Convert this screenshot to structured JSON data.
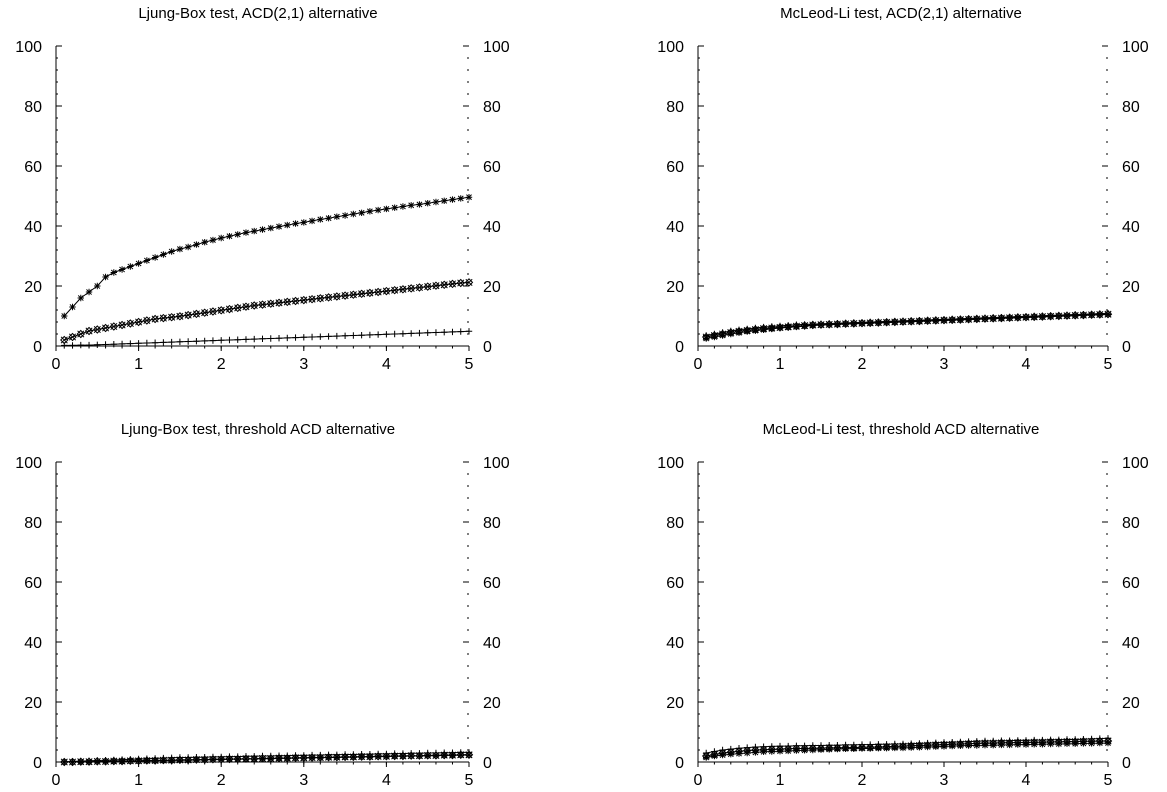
{
  "chart_data": [
    {
      "type": "line",
      "title": "Ljung-Box test, ACD(2,1) alternative",
      "xlim": [
        0,
        5
      ],
      "ylim": [
        0,
        100
      ],
      "xticks": [
        "0",
        "1",
        "2",
        "3",
        "4",
        "5"
      ],
      "yticks": [
        "0",
        "20",
        "40",
        "60",
        "80",
        "100"
      ],
      "grid": false,
      "x": [
        0.1,
        0.2,
        0.3,
        0.4,
        0.5,
        0.6,
        0.7,
        0.8,
        0.9,
        1.0,
        1.1,
        1.2,
        1.3,
        1.4,
        1.5,
        1.6,
        1.7,
        1.8,
        1.9,
        2.0,
        2.1,
        2.2,
        2.3,
        2.4,
        2.5,
        2.6,
        2.7,
        2.8,
        2.9,
        3.0,
        3.1,
        3.2,
        3.3,
        3.4,
        3.5,
        3.6,
        3.7,
        3.8,
        3.9,
        4.0,
        4.1,
        4.2,
        4.3,
        4.4,
        4.5,
        4.6,
        4.7,
        4.8,
        4.9,
        5.0
      ],
      "series": [
        {
          "marker": "asterisk",
          "values": [
            10,
            13,
            16,
            18,
            20,
            23,
            24.5,
            25.5,
            26.5,
            27.5,
            28.5,
            29.5,
            30.5,
            31.5,
            32.3,
            33,
            33.8,
            34.6,
            35.3,
            36,
            36.6,
            37.2,
            37.8,
            38.3,
            38.8,
            39.3,
            39.8,
            40.3,
            40.8,
            41.2,
            41.7,
            42.2,
            42.6,
            43.1,
            43.5,
            44,
            44.4,
            44.9,
            45.3,
            45.7,
            46.1,
            46.5,
            46.9,
            47.2,
            47.6,
            48,
            48.4,
            48.8,
            49.2,
            49.6
          ]
        },
        {
          "marker": "x-diamond",
          "values": [
            2,
            3,
            4,
            5,
            5.5,
            6,
            6.5,
            7,
            7.5,
            8,
            8.5,
            9,
            9.3,
            9.6,
            9.9,
            10.3,
            10.7,
            11.1,
            11.5,
            11.9,
            12.3,
            12.7,
            13.1,
            13.5,
            13.8,
            14.1,
            14.4,
            14.7,
            15,
            15.3,
            15.6,
            15.9,
            16.2,
            16.5,
            16.8,
            17.1,
            17.4,
            17.7,
            18,
            18.3,
            18.6,
            18.9,
            19.2,
            19.5,
            19.8,
            20.1,
            20.4,
            20.7,
            21,
            21.2
          ]
        },
        {
          "marker": "plus",
          "values": [
            0.2,
            0.2,
            0.3,
            0.3,
            0.4,
            0.5,
            0.6,
            0.7,
            0.8,
            0.9,
            1.0,
            1.1,
            1.2,
            1.3,
            1.4,
            1.5,
            1.6,
            1.7,
            1.8,
            1.9,
            2.0,
            2.1,
            2.2,
            2.3,
            2.4,
            2.5,
            2.6,
            2.7,
            2.8,
            2.9,
            3.0,
            3.1,
            3.2,
            3.3,
            3.4,
            3.5,
            3.6,
            3.7,
            3.8,
            3.9,
            4.0,
            4.1,
            4.2,
            4.3,
            4.4,
            4.5,
            4.6,
            4.7,
            4.8,
            4.9
          ]
        }
      ]
    },
    {
      "type": "line",
      "title": "McLeod-Li test, ACD(2,1) alternative",
      "xlim": [
        0,
        5
      ],
      "ylim": [
        0,
        100
      ],
      "xticks": [
        "0",
        "1",
        "2",
        "3",
        "4",
        "5"
      ],
      "yticks": [
        "0",
        "20",
        "40",
        "60",
        "80",
        "100"
      ],
      "grid": false,
      "x": [
        0.1,
        0.2,
        0.3,
        0.4,
        0.5,
        0.6,
        0.7,
        0.8,
        0.9,
        1.0,
        1.1,
        1.2,
        1.3,
        1.4,
        1.5,
        1.6,
        1.7,
        1.8,
        1.9,
        2.0,
        2.1,
        2.2,
        2.3,
        2.4,
        2.5,
        2.6,
        2.7,
        2.8,
        2.9,
        3.0,
        3.1,
        3.2,
        3.3,
        3.4,
        3.5,
        3.6,
        3.7,
        3.8,
        3.9,
        4.0,
        4.1,
        4.2,
        4.3,
        4.4,
        4.5,
        4.6,
        4.7,
        4.8,
        4.9,
        5.0
      ],
      "series": [
        {
          "marker": "asterisk",
          "values": [
            2.5,
            3,
            3.5,
            4,
            4.4,
            4.8,
            5.1,
            5.4,
            5.7,
            6,
            6.2,
            6.4,
            6.6,
            6.8,
            7,
            7.1,
            7.2,
            7.3,
            7.4,
            7.5,
            7.6,
            7.7,
            7.8,
            7.9,
            8,
            8.1,
            8.2,
            8.3,
            8.4,
            8.5,
            8.6,
            8.7,
            8.8,
            8.9,
            9,
            9.1,
            9.2,
            9.3,
            9.4,
            9.5,
            9.6,
            9.7,
            9.8,
            9.9,
            10,
            10.1,
            10.2,
            10.3,
            10.4,
            10.5
          ]
        },
        {
          "marker": "x-diamond",
          "values": [
            3,
            3.5,
            4,
            4.5,
            4.9,
            5.2,
            5.5,
            5.8,
            6,
            6.2,
            6.4,
            6.6,
            6.8,
            7,
            7.1,
            7.2,
            7.3,
            7.4,
            7.5,
            7.6,
            7.7,
            7.8,
            7.9,
            8,
            8.1,
            8.2,
            8.3,
            8.4,
            8.5,
            8.6,
            8.7,
            8.8,
            8.9,
            9,
            9.1,
            9.2,
            9.3,
            9.4,
            9.5,
            9.6,
            9.7,
            9.8,
            9.9,
            10,
            10.1,
            10.2,
            10.3,
            10.4,
            10.5,
            10.6
          ]
        },
        {
          "marker": "plus",
          "values": [
            3.5,
            4,
            4.5,
            5,
            5.4,
            5.7,
            6,
            6.3,
            6.5,
            6.7,
            6.9,
            7.1,
            7.2,
            7.3,
            7.4,
            7.5,
            7.6,
            7.7,
            7.8,
            7.9,
            8,
            8.1,
            8.2,
            8.3,
            8.4,
            8.5,
            8.6,
            8.7,
            8.8,
            8.9,
            9,
            9.1,
            9.2,
            9.3,
            9.4,
            9.5,
            9.6,
            9.7,
            9.8,
            9.9,
            10,
            10.1,
            10.2,
            10.3,
            10.4,
            10.5,
            10.6,
            10.7,
            10.8,
            10.9
          ]
        }
      ]
    },
    {
      "type": "line",
      "title": "Ljung-Box test, threshold ACD alternative",
      "xlim": [
        0,
        5
      ],
      "ylim": [
        0,
        100
      ],
      "xticks": [
        "0",
        "1",
        "2",
        "3",
        "4",
        "5"
      ],
      "yticks": [
        "0",
        "20",
        "40",
        "60",
        "80",
        "100"
      ],
      "grid": false,
      "x": [
        0.1,
        0.2,
        0.3,
        0.4,
        0.5,
        0.6,
        0.7,
        0.8,
        0.9,
        1.0,
        1.1,
        1.2,
        1.3,
        1.4,
        1.5,
        1.6,
        1.7,
        1.8,
        1.9,
        2.0,
        2.1,
        2.2,
        2.3,
        2.4,
        2.5,
        2.6,
        2.7,
        2.8,
        2.9,
        3.0,
        3.1,
        3.2,
        3.3,
        3.4,
        3.5,
        3.6,
        3.7,
        3.8,
        3.9,
        4.0,
        4.1,
        4.2,
        4.3,
        4.4,
        4.5,
        4.6,
        4.7,
        4.8,
        4.9,
        5.0
      ],
      "series": [
        {
          "marker": "asterisk",
          "values": [
            0,
            0,
            0,
            0,
            0.1,
            0.1,
            0.2,
            0.2,
            0.3,
            0.3,
            0.4,
            0.4,
            0.5,
            0.5,
            0.6,
            0.6,
            0.7,
            0.7,
            0.8,
            0.8,
            0.9,
            0.9,
            1.0,
            1.0,
            1.1,
            1.1,
            1.2,
            1.2,
            1.3,
            1.3,
            1.4,
            1.4,
            1.5,
            1.5,
            1.6,
            1.6,
            1.7,
            1.7,
            1.8,
            1.8,
            1.9,
            1.9,
            2.0,
            2.0,
            2.1,
            2.1,
            2.2,
            2.2,
            2.3,
            2.3
          ]
        },
        {
          "marker": "x-diamond",
          "values": [
            0,
            0,
            0.1,
            0.1,
            0.2,
            0.2,
            0.3,
            0.3,
            0.4,
            0.4,
            0.5,
            0.5,
            0.6,
            0.6,
            0.7,
            0.7,
            0.8,
            0.8,
            0.9,
            0.9,
            1.0,
            1.0,
            1.1,
            1.1,
            1.2,
            1.2,
            1.3,
            1.3,
            1.4,
            1.4,
            1.5,
            1.5,
            1.6,
            1.6,
            1.7,
            1.7,
            1.8,
            1.8,
            1.9,
            1.9,
            2.0,
            2.0,
            2.1,
            2.1,
            2.2,
            2.2,
            2.3,
            2.3,
            2.4,
            2.4
          ]
        },
        {
          "marker": "plus",
          "values": [
            0.1,
            0.2,
            0.3,
            0.4,
            0.5,
            0.6,
            0.7,
            0.8,
            0.9,
            1.0,
            1.1,
            1.2,
            1.3,
            1.4,
            1.5,
            1.5,
            1.6,
            1.6,
            1.7,
            1.7,
            1.8,
            1.8,
            1.9,
            1.9,
            2.0,
            2.0,
            2.1,
            2.1,
            2.2,
            2.2,
            2.3,
            2.3,
            2.4,
            2.4,
            2.5,
            2.5,
            2.6,
            2.6,
            2.7,
            2.7,
            2.8,
            2.8,
            2.9,
            2.9,
            3.0,
            3.0,
            3.1,
            3.1,
            3.2,
            3.2
          ]
        }
      ]
    },
    {
      "type": "line",
      "title": "McLeod-Li test, threshold ACD alternative",
      "xlim": [
        0,
        5
      ],
      "ylim": [
        0,
        100
      ],
      "xticks": [
        "0",
        "1",
        "2",
        "3",
        "4",
        "5"
      ],
      "yticks": [
        "0",
        "20",
        "40",
        "60",
        "80",
        "100"
      ],
      "grid": false,
      "x": [
        0.1,
        0.2,
        0.3,
        0.4,
        0.5,
        0.6,
        0.7,
        0.8,
        0.9,
        1.0,
        1.1,
        1.2,
        1.3,
        1.4,
        1.5,
        1.6,
        1.7,
        1.8,
        1.9,
        2.0,
        2.1,
        2.2,
        2.3,
        2.4,
        2.5,
        2.6,
        2.7,
        2.8,
        2.9,
        3.0,
        3.1,
        3.2,
        3.3,
        3.4,
        3.5,
        3.6,
        3.7,
        3.8,
        3.9,
        4.0,
        4.1,
        4.2,
        4.3,
        4.4,
        4.5,
        4.6,
        4.7,
        4.8,
        4.9,
        5.0
      ],
      "series": [
        {
          "marker": "asterisk",
          "values": [
            1.5,
            2,
            2.3,
            2.6,
            2.8,
            3,
            3.2,
            3.4,
            3.5,
            3.6,
            3.7,
            3.8,
            3.9,
            4,
            4.1,
            4.2,
            4.3,
            4.4,
            4.4,
            4.5,
            4.5,
            4.6,
            4.6,
            4.7,
            4.7,
            4.8,
            4.9,
            5,
            5.1,
            5.2,
            5.3,
            5.4,
            5.5,
            5.5,
            5.6,
            5.6,
            5.7,
            5.7,
            5.8,
            5.8,
            5.9,
            5.9,
            6,
            6,
            6.1,
            6.1,
            6.2,
            6.2,
            6.3,
            6.3
          ]
        },
        {
          "marker": "x-diamond",
          "values": [
            2,
            2.5,
            3,
            3.3,
            3.6,
            3.8,
            4,
            4.1,
            4.2,
            4.3,
            4.4,
            4.5,
            4.5,
            4.6,
            4.6,
            4.7,
            4.7,
            4.8,
            4.8,
            4.9,
            4.9,
            5,
            5.1,
            5.2,
            5.3,
            5.4,
            5.5,
            5.6,
            5.7,
            5.8,
            5.9,
            6,
            6.1,
            6.2,
            6.3,
            6.3,
            6.4,
            6.4,
            6.5,
            6.5,
            6.6,
            6.6,
            6.7,
            6.7,
            6.8,
            6.8,
            6.9,
            6.9,
            7,
            7
          ]
        },
        {
          "marker": "plus",
          "values": [
            3,
            3.5,
            4,
            4.3,
            4.6,
            4.8,
            5,
            5.1,
            5.2,
            5.3,
            5.3,
            5.4,
            5.4,
            5.5,
            5.5,
            5.6,
            5.6,
            5.7,
            5.7,
            5.8,
            5.8,
            5.9,
            5.9,
            6,
            6,
            6.1,
            6.2,
            6.3,
            6.4,
            6.5,
            6.6,
            6.7,
            6.8,
            6.9,
            7,
            7,
            7.1,
            7.1,
            7.2,
            7.2,
            7.3,
            7.3,
            7.4,
            7.4,
            7.5,
            7.5,
            7.6,
            7.7,
            7.8,
            7.9
          ]
        }
      ]
    }
  ]
}
